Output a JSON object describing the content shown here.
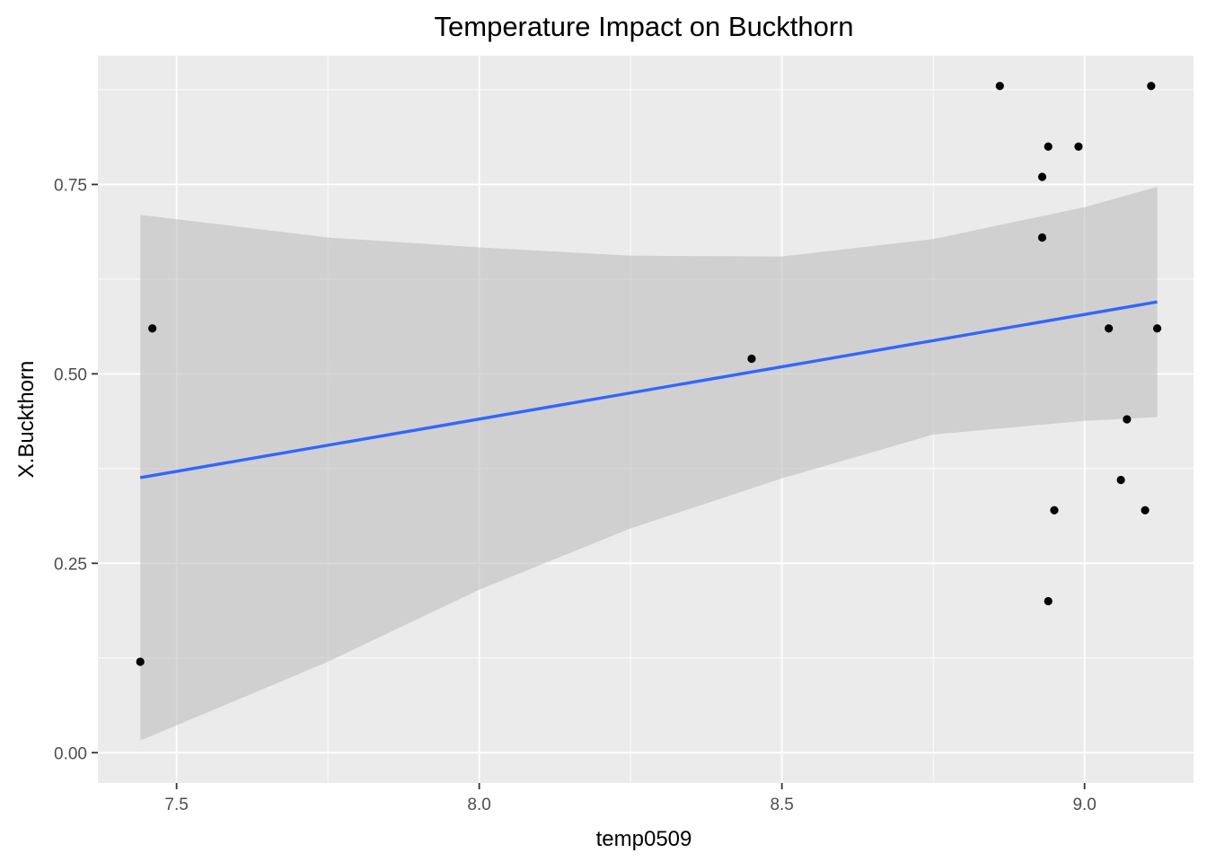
{
  "chart_data": {
    "type": "scatter",
    "title": "Temperature Impact on Buckthorn",
    "xlabel": "temp0509",
    "ylabel": "X.Buckthorn",
    "xlim": [
      7.37,
      9.18
    ],
    "ylim": [
      -0.04,
      0.92
    ],
    "x_ticks": [
      7.5,
      8.0,
      8.5,
      9.0
    ],
    "x_tick_labels": [
      "7.5",
      "8.0",
      "8.5",
      "9.0"
    ],
    "y_ticks": [
      0.0,
      0.25,
      0.5,
      0.75
    ],
    "y_tick_labels": [
      "0.00",
      "0.25",
      "0.50",
      "0.75"
    ],
    "grid": true,
    "points": [
      {
        "x": 7.44,
        "y": 0.12
      },
      {
        "x": 7.46,
        "y": 0.56
      },
      {
        "x": 8.45,
        "y": 0.52
      },
      {
        "x": 8.86,
        "y": 0.88
      },
      {
        "x": 8.93,
        "y": 0.76
      },
      {
        "x": 8.93,
        "y": 0.68
      },
      {
        "x": 8.94,
        "y": 0.8
      },
      {
        "x": 8.94,
        "y": 0.2
      },
      {
        "x": 8.95,
        "y": 0.32
      },
      {
        "x": 8.99,
        "y": 0.8
      },
      {
        "x": 9.04,
        "y": 0.56
      },
      {
        "x": 9.06,
        "y": 0.36
      },
      {
        "x": 9.07,
        "y": 0.44
      },
      {
        "x": 9.1,
        "y": 0.32
      },
      {
        "x": 9.11,
        "y": 0.88
      },
      {
        "x": 9.12,
        "y": 0.56
      }
    ],
    "trend_line": {
      "x": [
        7.44,
        9.12
      ],
      "y": [
        0.363,
        0.595
      ]
    },
    "confidence_band": {
      "x": [
        7.44,
        7.75,
        8.0,
        8.25,
        8.5,
        8.75,
        9.0,
        9.12
      ],
      "upper": [
        0.71,
        0.68,
        0.667,
        0.656,
        0.655,
        0.678,
        0.72,
        0.747
      ],
      "lower": [
        0.016,
        0.12,
        0.215,
        0.296,
        0.362,
        0.42,
        0.438,
        0.443
      ]
    },
    "colors": {
      "panel_background": "#EBEBEB",
      "grid_line": "#FFFFFF",
      "point": "#000000",
      "trend_line": "#3366FF",
      "confidence_band": "#BEBEBE"
    }
  }
}
